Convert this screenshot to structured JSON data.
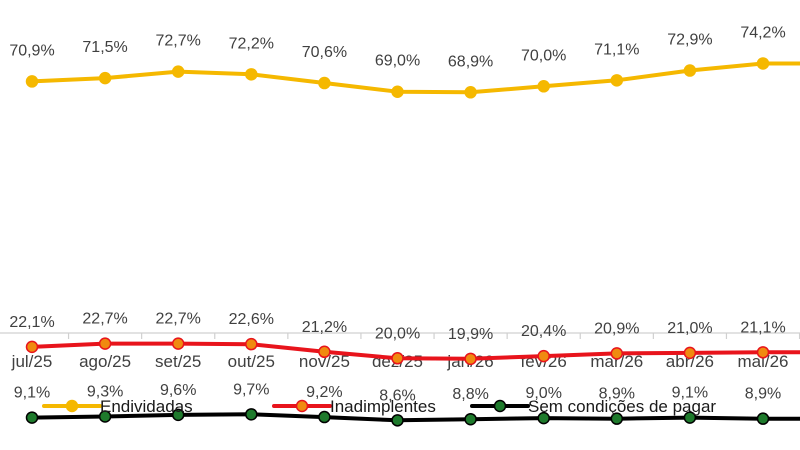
{
  "chart_data": {
    "type": "line",
    "categories": [
      "jul/25",
      "ago/25",
      "set/25",
      "out/25",
      "nov/25",
      "dez/25",
      "jan/26",
      "fev/26",
      "mar/26",
      "abr/26",
      "mai/26",
      ""
    ],
    "series": [
      {
        "name": "Endividadas",
        "values": [
          70.9,
          71.5,
          72.7,
          72.2,
          70.6,
          69.0,
          68.9,
          70.0,
          71.1,
          72.9,
          74.2,
          74.2
        ],
        "labels": [
          "70,9%",
          "71,5%",
          "72,7%",
          "72,2%",
          "70,6%",
          "69,0%",
          "68,9%",
          "70,0%",
          "71,1%",
          "72,9%",
          "74,2%",
          ""
        ],
        "color": "#f5b800",
        "marker_color": "#f5b800"
      },
      {
        "name": "Inadimplentes",
        "values": [
          22.1,
          22.7,
          22.7,
          22.6,
          21.2,
          20.0,
          19.9,
          20.4,
          20.9,
          21.0,
          21.1,
          21.1
        ],
        "labels": [
          "22,1%",
          "22,7%",
          "22,7%",
          "22,6%",
          "21,2%",
          "20,0%",
          "19,9%",
          "20,4%",
          "20,9%",
          "21,0%",
          "21,1%",
          ""
        ],
        "color": "#e8141c",
        "marker_color": "#f08a10"
      },
      {
        "name": "Sem condições de pagar",
        "values": [
          9.1,
          9.3,
          9.6,
          9.7,
          9.2,
          8.6,
          8.8,
          9.0,
          8.9,
          9.1,
          8.9,
          8.9
        ],
        "labels": [
          "9,1%",
          "9,3%",
          "9,6%",
          "9,7%",
          "9,2%",
          "8,6%",
          "8,8%",
          "9,0%",
          "8,9%",
          "9,1%",
          "8,9%",
          ""
        ],
        "color": "#000000",
        "marker_color": "#1e7a2c"
      }
    ],
    "title": "",
    "xlabel": "",
    "ylabel": "",
    "ylim": [
      0,
      80
    ],
    "grid": false,
    "legend": "bottom",
    "axis_line_color": "#d0d0d0"
  }
}
